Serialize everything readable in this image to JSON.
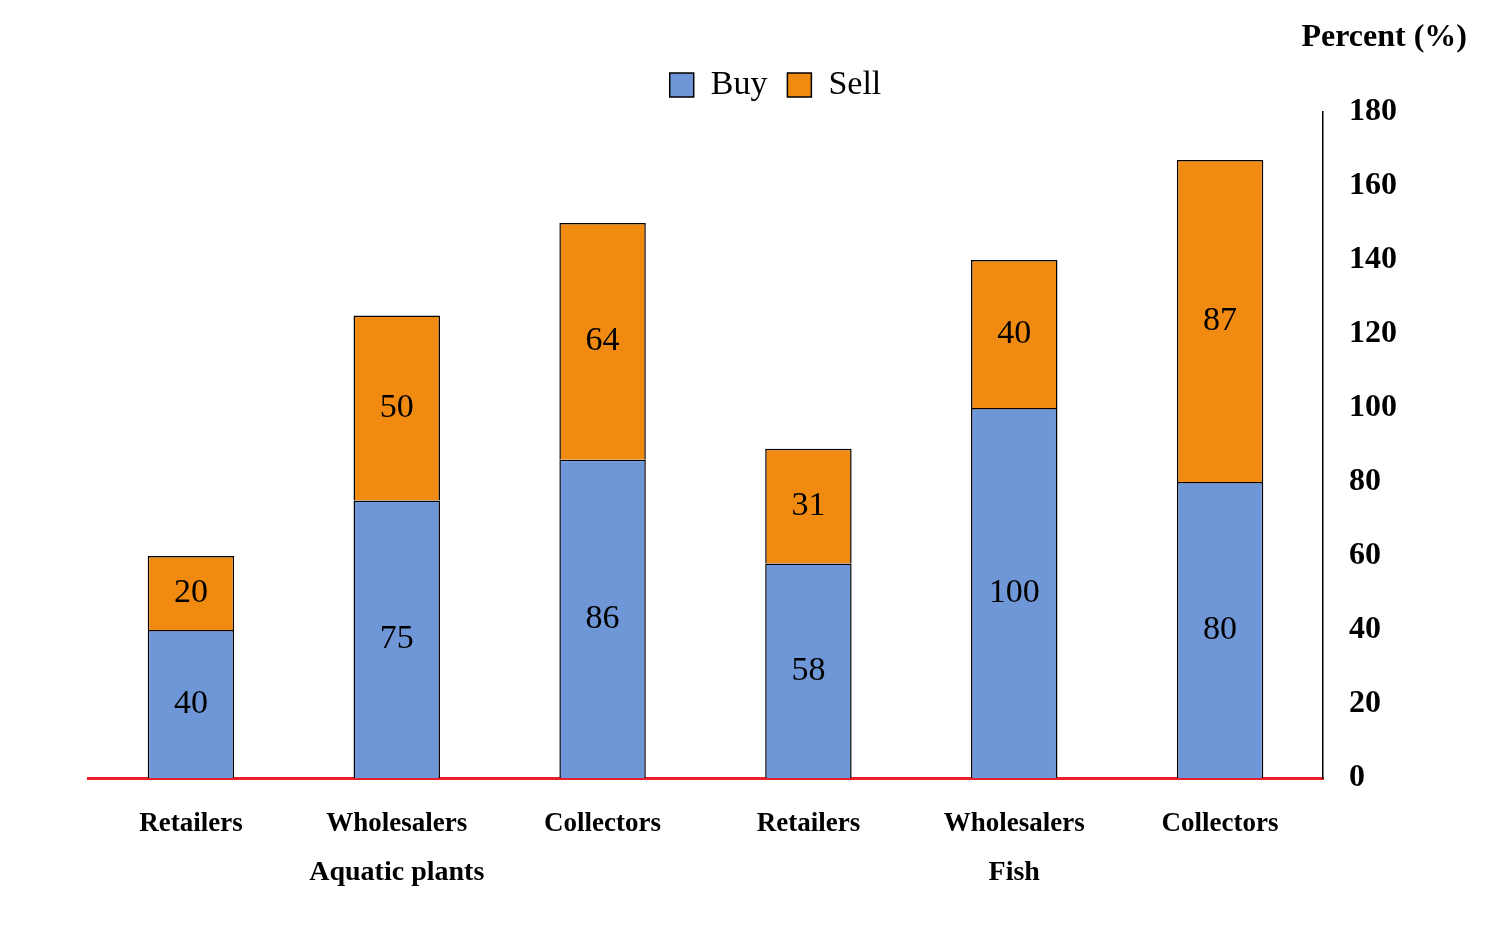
{
  "chart_data": {
    "type": "bar",
    "stacked": true,
    "ylabel": "Percent (%)",
    "categories": [
      "Retailers",
      "Wholesalers",
      "Collectors",
      "Retailers",
      "Wholesalers",
      "Collectors"
    ],
    "series": [
      {
        "name": "Buy",
        "color": "#6f96d6",
        "values": [
          40,
          75,
          86,
          58,
          100,
          80
        ]
      },
      {
        "name": "Sell",
        "color": "#f08a10",
        "values": [
          20,
          50,
          64,
          31,
          40,
          87
        ]
      }
    ],
    "ylim": [
      0,
      180
    ],
    "yticks": [
      0,
      20,
      40,
      60,
      80,
      100,
      120,
      140,
      160,
      180
    ],
    "data_labels": true,
    "grid": false,
    "legend": "top",
    "annotations": [
      "Aquatic plants",
      "Fish"
    ]
  }
}
